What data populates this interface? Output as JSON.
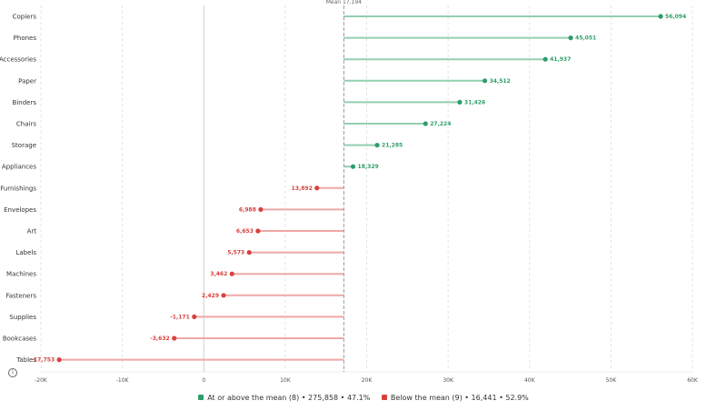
{
  "chart_data": {
    "type": "lollipop",
    "orientation": "horizontal",
    "categories": [
      "Copiers",
      "Phones",
      "Accessories",
      "Paper",
      "Binders",
      "Chairs",
      "Storage",
      "Appliances",
      "Furnishings",
      "Envelopes",
      "Art",
      "Labels",
      "Machines",
      "Fasteners",
      "Supplies",
      "Bookcases",
      "Tables"
    ],
    "values": [
      56094,
      45051,
      41937,
      34512,
      31426,
      27224,
      21285,
      18329,
      13892,
      6988,
      6653,
      5573,
      3462,
      2429,
      -1171,
      -3632,
      -17753
    ],
    "value_labels": [
      "56,094",
      "45,051",
      "41,937",
      "34,512",
      "31,426",
      "27,224",
      "21,285",
      "18,329",
      "13,892",
      "6,988",
      "6,653",
      "5,573",
      "3,462",
      "2,429",
      "-1,171",
      "-3,632",
      "-17,753"
    ],
    "mean": 17194,
    "mean_label": "Mean 17,194",
    "xlim": [
      -20000,
      60000
    ],
    "x_ticks": [
      -20000,
      -10000,
      0,
      10000,
      20000,
      30000,
      40000,
      50000,
      60000
    ],
    "x_tick_labels": [
      "-20K",
      "-10K",
      "0",
      "10K",
      "20K",
      "30K",
      "40K",
      "50K",
      "60K"
    ],
    "grid": true,
    "legend_position": "bottom",
    "colors": {
      "above": "#2e9e69",
      "below": "#d9413e",
      "above_line": "#93cfb1",
      "below_line": "#eea8a6",
      "mean_line": "#999999"
    }
  },
  "legend": {
    "above_label": "At or above the mean (8) • 275,858 • 47.1%",
    "below_label": "Below the mean (9) • 16,441 • 52.9%"
  },
  "info_icon": {
    "glyph": "i"
  }
}
